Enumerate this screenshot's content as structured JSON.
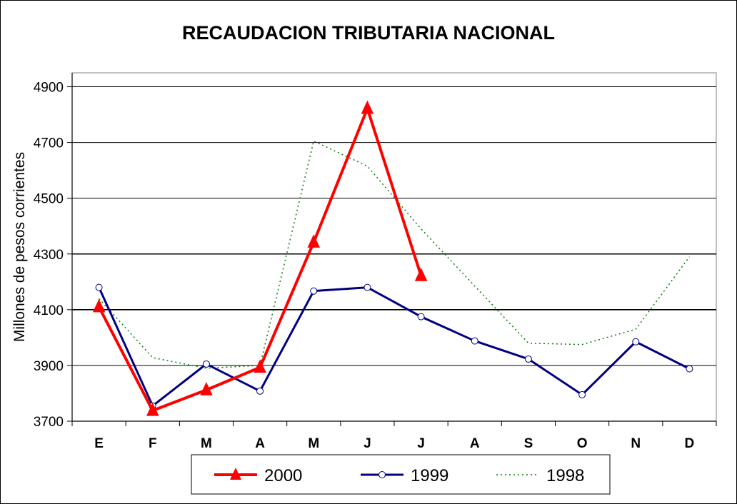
{
  "chart_data": {
    "type": "line",
    "title": "RECAUDACION TRIBUTARIA NACIONAL",
    "ylabel": "Millones de pesos corrientes",
    "xlabel": "",
    "categories": [
      "E",
      "F",
      "M",
      "A",
      "M",
      "J",
      "J",
      "A",
      "S",
      "O",
      "N",
      "D"
    ],
    "yticks": [
      3700,
      3900,
      4100,
      4300,
      4500,
      4700,
      4900
    ],
    "ylim": [
      3700,
      4950
    ],
    "grid": "horizontal",
    "legend": "bottom",
    "series": [
      {
        "name": "2000",
        "color": "#ff0000",
        "marker": "triangle",
        "style": "solid-thick",
        "values": [
          4110,
          3738,
          3812,
          3893,
          4342,
          4822,
          4222,
          null,
          null,
          null,
          null,
          null
        ]
      },
      {
        "name": "1999",
        "color": "#000080",
        "marker": "circle",
        "style": "solid",
        "values": [
          4180,
          3755,
          3905,
          3808,
          4167,
          4180,
          4075,
          3988,
          3923,
          3795,
          3985,
          3888
        ]
      },
      {
        "name": "1998",
        "color": "#008000",
        "marker": "none",
        "style": "dotted",
        "values": [
          4140,
          3928,
          3890,
          3900,
          4705,
          4615,
          4390,
          4185,
          3980,
          3975,
          4030,
          4290
        ]
      }
    ]
  }
}
